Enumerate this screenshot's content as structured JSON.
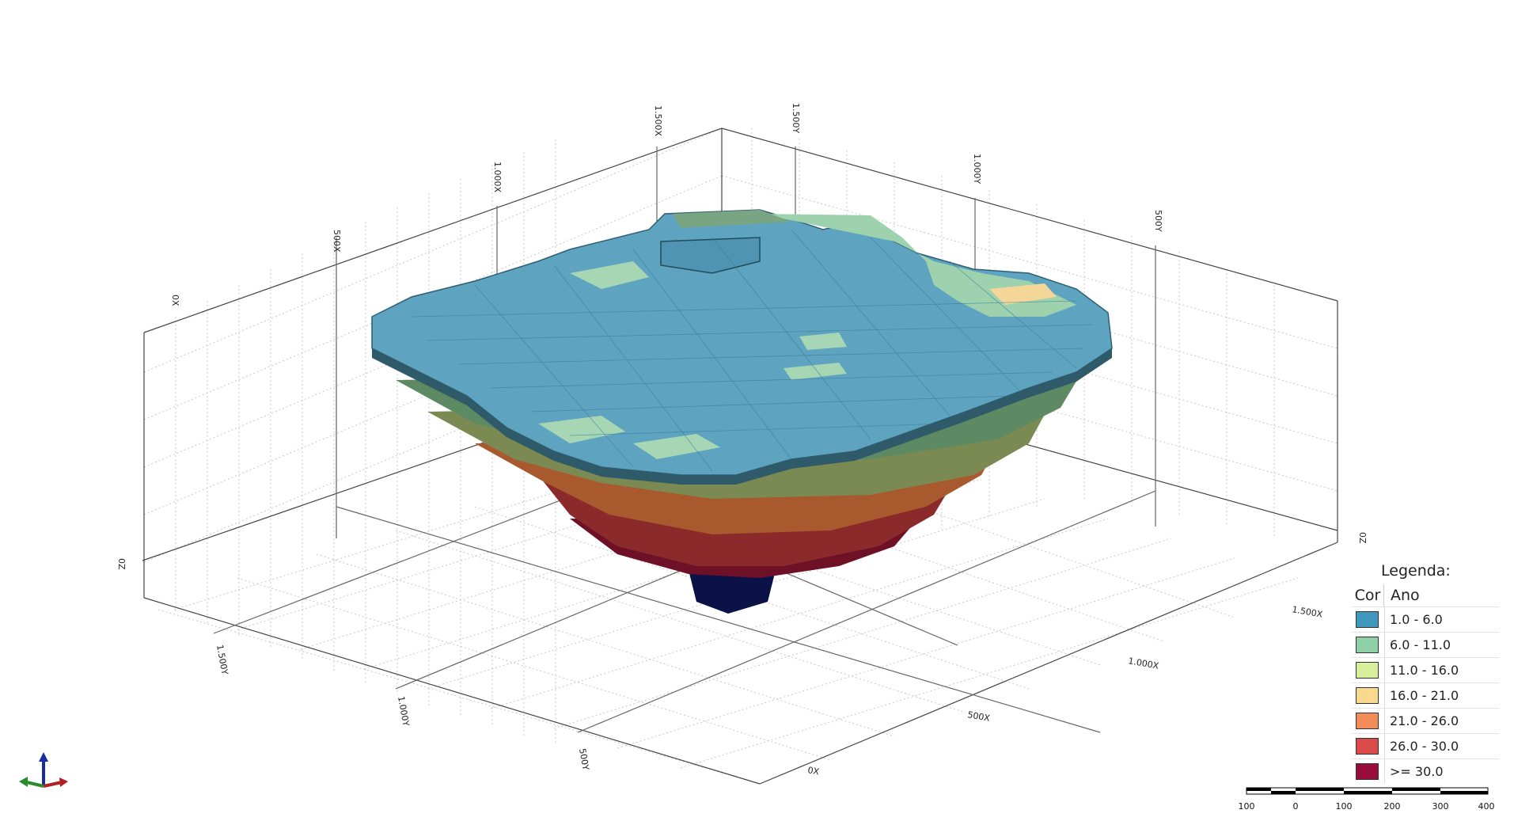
{
  "axes": {
    "x_ticks_top": [
      "0X",
      "500X",
      "1.000X",
      "1.500X"
    ],
    "y_ticks_top": [
      "1.500Y",
      "1.000Y",
      "500Y"
    ],
    "z_labels": [
      "0Z",
      "0Z"
    ],
    "x_ticks_bottom": [
      "1.500X",
      "1.000X",
      "500X",
      "0X"
    ],
    "y_ticks_bottom": [
      "1.500Y",
      "1.000Y",
      "500Y"
    ]
  },
  "legend": {
    "title": "Legenda:",
    "col_color": "Cor",
    "col_year": "Ano",
    "rows": [
      {
        "label": "1.0   -   6.0",
        "color": "#3f97bb"
      },
      {
        "label": "6.0   -   11.0",
        "color": "#8fd0a6"
      },
      {
        "label": "11.0   -   16.0",
        "color": "#d8ef9c"
      },
      {
        "label": "16.0   -   21.0",
        "color": "#f8d98e"
      },
      {
        "label": "21.0   -   26.0",
        "color": "#f28c58"
      },
      {
        "label": "26.0   -   30.0",
        "color": "#d94a48"
      },
      {
        "label": ">= 30.0",
        "color": "#9a0c3c"
      }
    ]
  },
  "scale_bar": {
    "labels": [
      "100",
      "0",
      "100",
      "200",
      "300",
      "400"
    ]
  }
}
